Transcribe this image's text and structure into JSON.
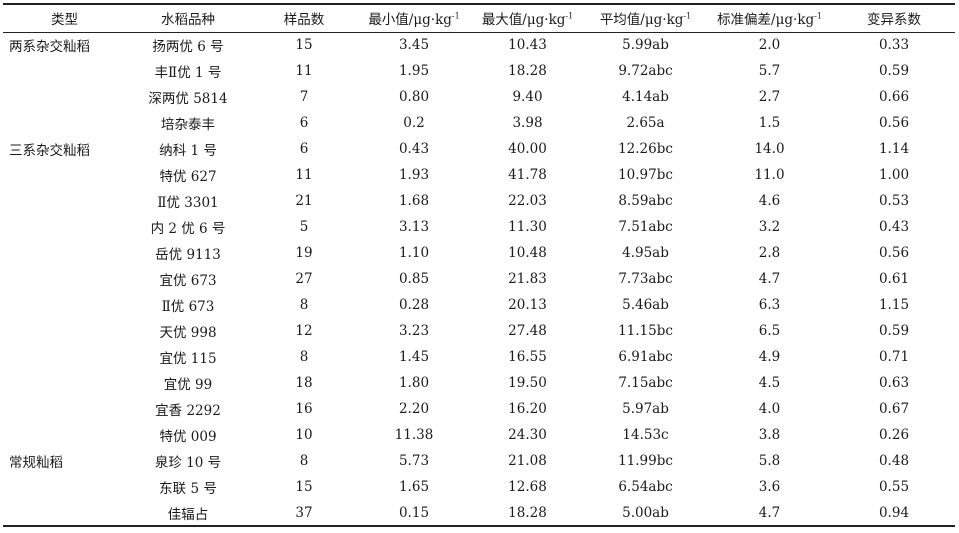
{
  "table": {
    "headers": {
      "type": "类型",
      "variety": "水稻品种",
      "count": "样品数",
      "min": "最小值/μg·kg",
      "max": "最大值/μg·kg",
      "mean": "平均值/μg·kg",
      "sd": "标准偏差/μg·kg",
      "cv": "变异系数",
      "unit_exponent": "-1"
    },
    "rows": [
      {
        "type": "两系杂交籼稻",
        "variety": "扬两优 6 号",
        "count": "15",
        "min": "3.45",
        "max": "10.43",
        "mean": "5.99ab",
        "sd": "2.0",
        "cv": "0.33"
      },
      {
        "type": "",
        "variety": "丰Ⅱ优 1 号",
        "count": "11",
        "min": "1.95",
        "max": "18.28",
        "mean": "9.72abc",
        "sd": "5.7",
        "cv": "0.59"
      },
      {
        "type": "",
        "variety": "深两优 5814",
        "count": "7",
        "min": "0.80",
        "max": "9.40",
        "mean": "4.14ab",
        "sd": "2.7",
        "cv": "0.66"
      },
      {
        "type": "",
        "variety": "培杂泰丰",
        "count": "6",
        "min": "0.2",
        "max": "3.98",
        "mean": "2.65a",
        "sd": "1.5",
        "cv": "0.56"
      },
      {
        "type": "三系杂交籼稻",
        "variety": "纳科 1 号",
        "count": "6",
        "min": "0.43",
        "max": "40.00",
        "mean": "12.26bc",
        "sd": "14.0",
        "cv": "1.14"
      },
      {
        "type": "",
        "variety": "特优 627",
        "count": "11",
        "min": "1.93",
        "max": "41.78",
        "mean": "10.97bc",
        "sd": "11.0",
        "cv": "1.00"
      },
      {
        "type": "",
        "variety": "Ⅱ优 3301",
        "count": "21",
        "min": "1.68",
        "max": "22.03",
        "mean": "8.59abc",
        "sd": "4.6",
        "cv": "0.53"
      },
      {
        "type": "",
        "variety": "内 2 优 6 号",
        "count": "5",
        "min": "3.13",
        "max": "11.30",
        "mean": "7.51abc",
        "sd": "3.2",
        "cv": "0.43"
      },
      {
        "type": "",
        "variety": "岳优 9113",
        "count": "19",
        "min": "1.10",
        "max": "10.48",
        "mean": "4.95ab",
        "sd": "2.8",
        "cv": "0.56"
      },
      {
        "type": "",
        "variety": "宜优 673",
        "count": "27",
        "min": "0.85",
        "max": "21.83",
        "mean": "7.73abc",
        "sd": "4.7",
        "cv": "0.61"
      },
      {
        "type": "",
        "variety": "Ⅱ优 673",
        "count": "8",
        "min": "0.28",
        "max": "20.13",
        "mean": "5.46ab",
        "sd": "6.3",
        "cv": "1.15"
      },
      {
        "type": "",
        "variety": "天优 998",
        "count": "12",
        "min": "3.23",
        "max": "27.48",
        "mean": "11.15bc",
        "sd": "6.5",
        "cv": "0.59"
      },
      {
        "type": "",
        "variety": "宜优 115",
        "count": "8",
        "min": "1.45",
        "max": "16.55",
        "mean": "6.91abc",
        "sd": "4.9",
        "cv": "0.71"
      },
      {
        "type": "",
        "variety": "宜优 99",
        "count": "18",
        "min": "1.80",
        "max": "19.50",
        "mean": "7.15abc",
        "sd": "4.5",
        "cv": "0.63"
      },
      {
        "type": "",
        "variety": "宜香 2292",
        "count": "16",
        "min": "2.20",
        "max": "16.20",
        "mean": "5.97ab",
        "sd": "4.0",
        "cv": "0.67"
      },
      {
        "type": "",
        "variety": "特优 009",
        "count": "10",
        "min": "11.38",
        "max": "24.30",
        "mean": "14.53c",
        "sd": "3.8",
        "cv": "0.26"
      },
      {
        "type": "常规籼稻",
        "variety": "泉珍 10 号",
        "count": "8",
        "min": "5.73",
        "max": "21.08",
        "mean": "11.99bc",
        "sd": "5.8",
        "cv": "0.48"
      },
      {
        "type": "",
        "variety": "东联 5 号",
        "count": "15",
        "min": "1.65",
        "max": "12.68",
        "mean": "6.54abc",
        "sd": "3.6",
        "cv": "0.55"
      },
      {
        "type": "",
        "variety": "佳辐占",
        "count": "37",
        "min": "0.15",
        "max": "18.28",
        "mean": "5.00ab",
        "sd": "4.7",
        "cv": "0.94"
      }
    ]
  }
}
